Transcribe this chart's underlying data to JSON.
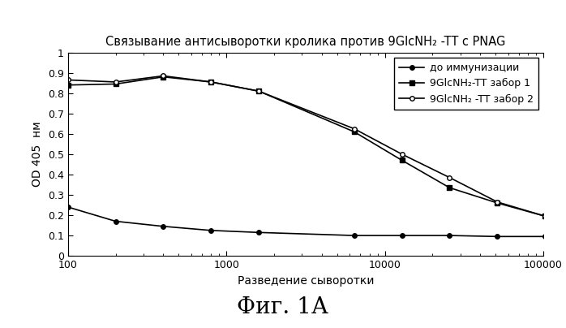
{
  "title": "Связывание антисыворотки кролика против 9GlcNH₂ -TT с PNAG",
  "xlabel": "Разведение сыворотки",
  "ylabel": "OD 405  нм",
  "fig_label": "Фиг. 1А",
  "xlim": [
    100,
    100000
  ],
  "ylim": [
    0,
    1.0
  ],
  "yticks": [
    0,
    0.1,
    0.2,
    0.3,
    0.4,
    0.5,
    0.6,
    0.7,
    0.8,
    0.9,
    1
  ],
  "ytick_labels": [
    "0",
    "0.1",
    "0.2",
    "0.3",
    "0.4",
    "0.5",
    "0.6",
    "0.7",
    "0.8",
    "0.9",
    "1"
  ],
  "xtick_labels": [
    "100",
    "1000",
    "10000",
    "100000"
  ],
  "xticks": [
    100,
    1000,
    10000,
    100000
  ],
  "series": [
    {
      "label": "до иммунизации",
      "x": [
        100,
        200,
        400,
        800,
        1600,
        6400,
        12800,
        25600,
        51200,
        102400
      ],
      "y": [
        0.24,
        0.17,
        0.145,
        0.125,
        0.115,
        0.1,
        0.1,
        0.1,
        0.095,
        0.095
      ],
      "marker": "o",
      "marker_filled": true,
      "color": "#000000",
      "linewidth": 1.2,
      "markersize": 4
    },
    {
      "label": "9GlcNH₂-TT забор 1",
      "x": [
        100,
        200,
        400,
        800,
        1600,
        6400,
        12800,
        25600,
        51200,
        102400
      ],
      "y": [
        0.84,
        0.845,
        0.88,
        0.855,
        0.81,
        0.61,
        0.47,
        0.335,
        0.26,
        0.195
      ],
      "marker": "s",
      "marker_filled": true,
      "color": "#000000",
      "linewidth": 1.2,
      "markersize": 4
    },
    {
      "label": "9GlcNH₂ -TT забор 2",
      "x": [
        100,
        200,
        400,
        800,
        1600,
        6400,
        12800,
        25600,
        51200,
        102400
      ],
      "y": [
        0.865,
        0.855,
        0.885,
        0.855,
        0.81,
        0.625,
        0.5,
        0.385,
        0.265,
        0.195
      ],
      "marker": "o",
      "marker_filled": false,
      "color": "#000000",
      "linewidth": 1.2,
      "markersize": 4
    }
  ],
  "background_color": "#ffffff",
  "title_fontsize": 10.5,
  "label_fontsize": 10,
  "tick_fontsize": 9,
  "legend_fontsize": 9,
  "fig_label_fontsize": 20
}
